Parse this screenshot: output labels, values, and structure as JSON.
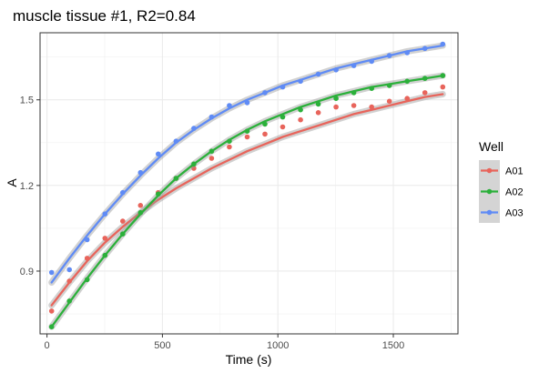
{
  "chart_data": {
    "type": "scatter",
    "title": "muscle tissue #1, R2=0.84",
    "xlabel": "Time (s)",
    "ylabel": "A",
    "xlim": [
      -30,
      1780
    ],
    "ylim": [
      0.68,
      1.735
    ],
    "x_ticks": [
      0,
      500,
      1000,
      1500
    ],
    "x_tick_labels": [
      "0",
      "500",
      "1000",
      "1500"
    ],
    "y_ticks": [
      0.9,
      1.2,
      1.5
    ],
    "y_tick_labels": [
      "0.9",
      "1.2",
      "1.5"
    ],
    "grid": true,
    "legend": {
      "title": "Well",
      "position": "right"
    },
    "x": [
      20,
      97,
      174,
      251,
      328,
      405,
      482,
      559,
      636,
      713,
      790,
      867,
      944,
      1021,
      1098,
      1175,
      1252,
      1329,
      1406,
      1483,
      1560,
      1637,
      1714
    ],
    "series": [
      {
        "name": "A01",
        "color": "#E8645B",
        "values": [
          0.76,
          0.865,
          0.945,
          1.015,
          1.075,
          1.13,
          1.175,
          1.225,
          1.26,
          1.295,
          1.335,
          1.37,
          1.38,
          1.405,
          1.43,
          1.455,
          1.475,
          1.48,
          1.475,
          1.495,
          1.505,
          1.525,
          1.545
        ],
        "fit": [
          0.78,
          0.86,
          0.935,
          1.0,
          1.055,
          1.105,
          1.15,
          1.19,
          1.225,
          1.26,
          1.29,
          1.32,
          1.345,
          1.37,
          1.39,
          1.41,
          1.43,
          1.45,
          1.465,
          1.48,
          1.495,
          1.51,
          1.52
        ]
      },
      {
        "name": "A02",
        "color": "#2BB03A",
        "values": [
          0.705,
          0.795,
          0.87,
          0.955,
          1.03,
          1.105,
          1.17,
          1.225,
          1.275,
          1.32,
          1.355,
          1.39,
          1.415,
          1.44,
          1.465,
          1.485,
          1.505,
          1.525,
          1.54,
          1.55,
          1.565,
          1.575,
          1.585
        ],
        "fit": [
          0.705,
          0.79,
          0.875,
          0.955,
          1.03,
          1.1,
          1.165,
          1.225,
          1.275,
          1.32,
          1.36,
          1.395,
          1.425,
          1.45,
          1.475,
          1.495,
          1.515,
          1.53,
          1.545,
          1.555,
          1.565,
          1.575,
          1.585
        ]
      },
      {
        "name": "A03",
        "color": "#5F8BF5",
        "values": [
          0.895,
          0.905,
          1.01,
          1.1,
          1.175,
          1.245,
          1.31,
          1.355,
          1.4,
          1.44,
          1.48,
          1.49,
          1.525,
          1.545,
          1.565,
          1.59,
          1.605,
          1.62,
          1.635,
          1.655,
          1.665,
          1.68,
          1.695
        ],
        "fit": [
          0.86,
          0.945,
          1.025,
          1.1,
          1.17,
          1.235,
          1.295,
          1.35,
          1.395,
          1.435,
          1.47,
          1.5,
          1.525,
          1.55,
          1.57,
          1.59,
          1.61,
          1.625,
          1.64,
          1.655,
          1.67,
          1.68,
          1.69
        ]
      }
    ]
  }
}
